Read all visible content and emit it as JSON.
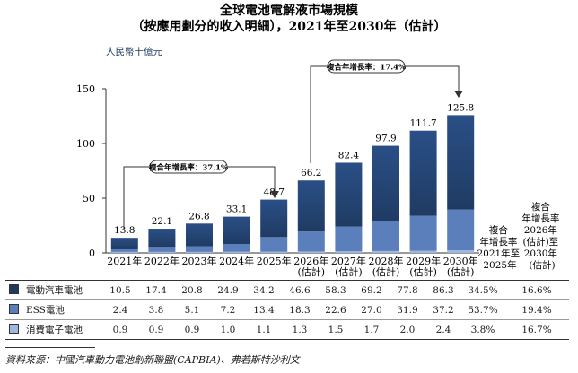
{
  "title_line1": "全球電池電解液市場規模",
  "title_line2": "（按應用劃分的收入明細），2021年至2030年（估計）",
  "unit_label": "人民幣十億元",
  "cagr_left_label": "複合年增長率：37.1%",
  "cagr_right_label": "複合年增長率：17.4%",
  "cagr_headers": [
    [
      "複合",
      "年增長率",
      "2021年至",
      "2025年"
    ],
    [
      "複合",
      "年增長率",
      "2026年",
      "(估計)至",
      "2030年",
      "(估計)"
    ]
  ],
  "colors": {
    "ev": "#1f3b63",
    "ess": "#5b7fba",
    "consumer": "#9fb6de",
    "bar_gradient_top": "#2a4f86"
  },
  "chart_data": {
    "type": "bar",
    "stacked": true,
    "categories": [
      [
        "2021年"
      ],
      [
        "2022年"
      ],
      [
        "2023年"
      ],
      [
        "2024年"
      ],
      [
        "2025年"
      ],
      [
        "2026年",
        "(估計)"
      ],
      [
        "2027年",
        "(估計)"
      ],
      [
        "2028年",
        "(估計)"
      ],
      [
        "2029年",
        "(估計)"
      ],
      [
        "2030年",
        "(估計)"
      ]
    ],
    "series": [
      {
        "name": "電動汽車電池",
        "values": [
          10.5,
          17.4,
          20.8,
          24.9,
          34.2,
          46.6,
          58.3,
          69.2,
          77.8,
          86.3
        ]
      },
      {
        "name": "ESS電池",
        "values": [
          2.4,
          3.8,
          5.1,
          7.2,
          13.4,
          18.3,
          22.6,
          27.0,
          31.9,
          37.2
        ]
      },
      {
        "name": "消費電子電池",
        "values": [
          0.9,
          0.9,
          0.9,
          1.0,
          1.1,
          1.3,
          1.5,
          1.7,
          2.0,
          2.4
        ]
      }
    ],
    "totals": [
      "13.8",
      "22.1",
      "26.8",
      "33.1",
      "48.7",
      "66.2",
      "82.4",
      "97.9",
      "111.7",
      "125.8"
    ],
    "yticks": [
      "0",
      "50",
      "100",
      "150"
    ],
    "ylim": [
      0,
      150
    ],
    "ylabel": "人民幣十億元",
    "cagr": [
      [
        "34.5%",
        "16.6%"
      ],
      [
        "53.7%",
        "19.4%"
      ],
      [
        "3.8%",
        "16.7%"
      ]
    ]
  },
  "table_rows": [
    {
      "label": "電動汽車電池",
      "values": [
        "10.5",
        "17.4",
        "20.8",
        "24.9",
        "34.2",
        "46.6",
        "58.3",
        "69.2",
        "77.8",
        "86.3"
      ],
      "cagr1": "34.5%",
      "cagr2": "16.6%"
    },
    {
      "label": "ESS電池",
      "values": [
        "2.4",
        "3.8",
        "5.1",
        "7.2",
        "13.4",
        "18.3",
        "22.6",
        "27.0",
        "31.9",
        "37.2"
      ],
      "cagr1": "53.7%",
      "cagr2": "19.4%"
    },
    {
      "label": "消費電子電池",
      "values": [
        "0.9",
        "0.9",
        "0.9",
        "1.0",
        "1.1",
        "1.3",
        "1.5",
        "1.7",
        "2.0",
        "2.4"
      ],
      "cagr1": "3.8%",
      "cagr2": "16.7%"
    }
  ],
  "source": "資料來源：中國汽車動力電池創新聯盟(CAPBIA)、弗若斯特沙利文"
}
